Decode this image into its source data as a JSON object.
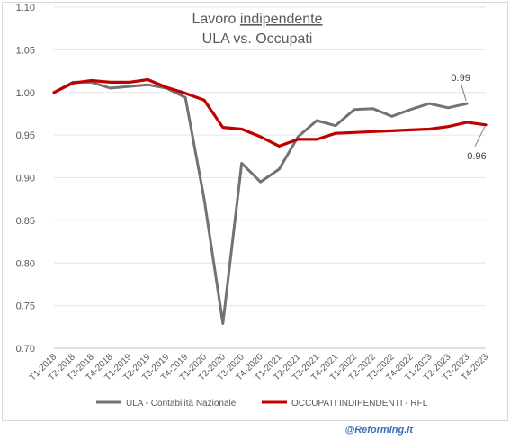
{
  "chart_data": {
    "type": "line",
    "title": [
      "Lavoro indipendente",
      "ULA vs. Occupati"
    ],
    "title_underlined_word": "indipendente",
    "categories": [
      "T1-2018",
      "T2-2018",
      "T3-2018",
      "T4-2018",
      "T1-2019",
      "T2-2019",
      "T3-2019",
      "T4-2019",
      "T1-2020",
      "T2-2020",
      "T3-2020",
      "T4-2020",
      "T1-2021",
      "T2-2021",
      "T3-2021",
      "T4-2021",
      "T1-2022",
      "T2-2022",
      "T3-2022",
      "T4-2022",
      "T1-2023",
      "T2-2023",
      "T3-2023",
      "T4-2023"
    ],
    "ylim": [
      0.7,
      1.1
    ],
    "yticks": [
      "0.70",
      "0.75",
      "0.80",
      "0.85",
      "0.90",
      "0.95",
      "1.00",
      "1.05",
      "1.10"
    ],
    "grid": true,
    "legend_position": "bottom",
    "series": [
      {
        "name": "ULA - Contabilità Nazionale",
        "color": "#767171",
        "values": [
          1.0,
          1.012,
          1.012,
          1.005,
          1.007,
          1.009,
          1.005,
          0.994,
          0.875,
          0.729,
          0.917,
          0.895,
          0.91,
          0.948,
          0.967,
          0.961,
          0.98,
          0.981,
          0.972,
          0.98,
          0.987,
          0.982,
          0.987,
          null
        ]
      },
      {
        "name": "OCCUPATI INDIPENDENTI - RFL",
        "color": "#c00000",
        "values": [
          1.0,
          1.011,
          1.014,
          1.012,
          1.012,
          1.015,
          1.006,
          0.999,
          0.991,
          0.959,
          0.957,
          0.948,
          0.937,
          0.945,
          0.945,
          0.952,
          0.953,
          0.954,
          0.955,
          0.956,
          0.957,
          0.96,
          0.965,
          0.962
        ]
      }
    ],
    "annotations": [
      {
        "text": "0.99",
        "series": 0,
        "category_index": 22
      },
      {
        "text": "0.96",
        "series": 1,
        "category_index": 23
      }
    ]
  },
  "credit": "@Reforming.it"
}
